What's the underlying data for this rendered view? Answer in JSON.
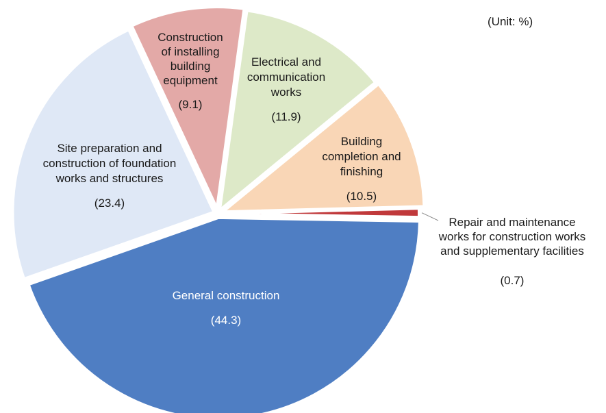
{
  "unit_label": "(Unit: %)",
  "chart_data": {
    "type": "pie",
    "title": "",
    "unit": "%",
    "slices": [
      {
        "label": [
          "General construction"
        ],
        "value": 44.3,
        "value_label": "(44.3)",
        "color": "#4f7ec3"
      },
      {
        "label": [
          "Site preparation and",
          "construction of foundation",
          "works and structures"
        ],
        "value": 23.4,
        "value_label": "(23.4)",
        "color": "#dfe8f6"
      },
      {
        "label": [
          "Construction",
          "of installing",
          "building",
          "equipment"
        ],
        "value": 9.1,
        "value_label": "(9.1)",
        "color": "#e3a9a7"
      },
      {
        "label": [
          "Electrical and",
          "communication",
          "works"
        ],
        "value": 11.9,
        "value_label": "(11.9)",
        "color": "#dde9c8"
      },
      {
        "label": [
          "Building",
          "completion and",
          "finishing"
        ],
        "value": 10.5,
        "value_label": "(10.5)",
        "color": "#f9d6b6"
      },
      {
        "label": [
          "Repair and maintenance",
          "works for  construction works",
          "and supplementary facilities"
        ],
        "value": 0.7,
        "value_label": "(0.7)",
        "color": "#c0393b"
      }
    ]
  }
}
